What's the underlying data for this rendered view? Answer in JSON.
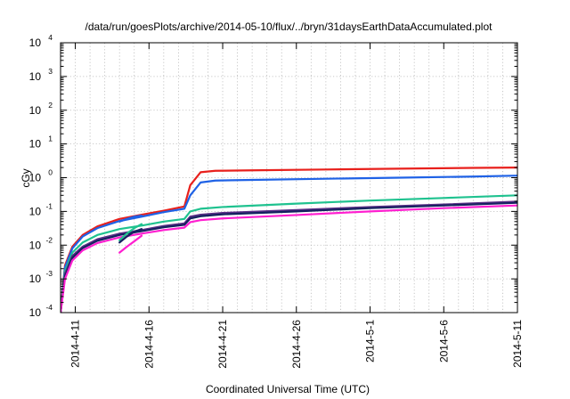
{
  "chart_data": {
    "type": "line",
    "title": "/data/run/goesPlots/archive/2014-05-10/flux/../bryn/31daysEarthDataAccumulated.plot",
    "xlabel": "Coordinated Universal Time (UTC)",
    "ylabel": "cGy",
    "y_scale": "log",
    "ylim": [
      0.0001,
      10000
    ],
    "xlim": [
      "2014-04-10",
      "2014-05-11"
    ],
    "grid": true,
    "legend": "none",
    "x_tick_labels": [
      "2014-4-11",
      "2014-4-16",
      "2014-4-21",
      "2014-4-26",
      "2014-5-1",
      "2014-5-6",
      "2014-5-11"
    ],
    "y_tick_labels": [
      {
        "base": "10",
        "exp": "-4"
      },
      {
        "base": "10",
        "exp": "-3"
      },
      {
        "base": "10",
        "exp": "-2"
      },
      {
        "base": "10",
        "exp": "-1"
      },
      {
        "base": "10",
        "exp": "0"
      },
      {
        "base": "10",
        "exp": "1"
      },
      {
        "base": "10",
        "exp": "2"
      },
      {
        "base": "10",
        "exp": "3"
      },
      {
        "base": "10",
        "exp": "4"
      }
    ],
    "series": [
      {
        "color": "#e8201c",
        "x": [
          "2014-04-10",
          "2014-04-10.3",
          "2014-04-10.8",
          "2014-04-11.5",
          "2014-04-12.5",
          "2014-04-14",
          "2014-04-15.5",
          "2014-04-17",
          "2014-04-18.4",
          "2014-04-18.8",
          "2014-04-19.5",
          "2014-04-20.5",
          "2014-04-23",
          "2014-04-28",
          "2014-05-03",
          "2014-05-08",
          "2014-05-11"
        ],
        "y": [
          0.0001,
          0.0025,
          0.009,
          0.02,
          0.036,
          0.06,
          0.08,
          0.105,
          0.14,
          0.6,
          1.45,
          1.6,
          1.65,
          1.75,
          1.85,
          1.95,
          2.0
        ]
      },
      {
        "color": "#1f62e6",
        "x": [
          "2014-04-10",
          "2014-04-10.3",
          "2014-04-10.8",
          "2014-04-11.5",
          "2014-04-12.5",
          "2014-04-14",
          "2014-04-15.5",
          "2014-04-17",
          "2014-04-18.4",
          "2014-04-18.8",
          "2014-04-19.5",
          "2014-04-20.5",
          "2014-04-23",
          "2014-04-28",
          "2014-05-03",
          "2014-05-08",
          "2014-05-11"
        ],
        "y": [
          0.0001,
          0.0022,
          0.008,
          0.018,
          0.032,
          0.052,
          0.07,
          0.095,
          0.12,
          0.3,
          0.72,
          0.82,
          0.86,
          0.93,
          1.0,
          1.08,
          1.15
        ]
      },
      {
        "color": "#1fc28f",
        "x": [
          "2014-04-10",
          "2014-04-10.3",
          "2014-04-10.8",
          "2014-04-11.5",
          "2014-04-12.5",
          "2014-04-14",
          "2014-04-15.5",
          "2014-04-17",
          "2014-04-18.4",
          "2014-04-18.8",
          "2014-04-19.5",
          "2014-04-21",
          "2014-04-26",
          "2014-05-01",
          "2014-05-06",
          "2014-05-11"
        ],
        "y": [
          0.0001,
          0.0017,
          0.006,
          0.012,
          0.02,
          0.03,
          0.038,
          0.05,
          0.06,
          0.1,
          0.12,
          0.135,
          0.17,
          0.21,
          0.25,
          0.3
        ]
      },
      {
        "color": "#5a2f86",
        "x": [
          "2014-04-10",
          "2014-04-10.3",
          "2014-04-10.8",
          "2014-04-11.5",
          "2014-04-12.5",
          "2014-04-14",
          "2014-04-15.5",
          "2014-04-17",
          "2014-04-18.4",
          "2014-04-18.8",
          "2014-04-19.5",
          "2014-04-21",
          "2014-04-26",
          "2014-05-01",
          "2014-05-06",
          "2014-05-11"
        ],
        "y": [
          0.0001,
          0.0014,
          0.0048,
          0.009,
          0.015,
          0.022,
          0.028,
          0.037,
          0.044,
          0.07,
          0.08,
          0.09,
          0.11,
          0.135,
          0.16,
          0.195
        ]
      },
      {
        "color": "#152060",
        "x": [
          "2014-04-10",
          "2014-04-10.3",
          "2014-04-10.8",
          "2014-04-11.5",
          "2014-04-12.5",
          "2014-04-14",
          "2014-04-15.5",
          "2014-04-17",
          "2014-04-18.4",
          "2014-04-18.8",
          "2014-04-19.5",
          "2014-04-21",
          "2014-04-26",
          "2014-05-01",
          "2014-05-06",
          "2014-05-11"
        ],
        "y": [
          0.0001,
          0.0012,
          0.0042,
          0.0082,
          0.0135,
          0.02,
          0.026,
          0.034,
          0.04,
          0.062,
          0.072,
          0.082,
          0.1,
          0.125,
          0.15,
          0.18
        ]
      },
      {
        "color": "#ff1fd0",
        "x": [
          "2014-04-10",
          "2014-04-10.3",
          "2014-04-10.8",
          "2014-04-11.5",
          "2014-04-12.5",
          "2014-04-14",
          "2014-04-15.5",
          "2014-04-17",
          "2014-04-18.4",
          "2014-04-18.8",
          "2014-04-19.5",
          "2014-04-21",
          "2014-04-26",
          "2014-05-01",
          "2014-05-06",
          "2014-05-11"
        ],
        "y": [
          0.0001,
          0.001,
          0.0035,
          0.007,
          0.0115,
          0.017,
          0.022,
          0.028,
          0.033,
          0.048,
          0.055,
          0.062,
          0.078,
          0.1,
          0.125,
          0.15
        ]
      },
      {
        "color": "#ff1fd0",
        "x": [
          "2014-04-14",
          "2014-04-14.5",
          "2014-04-15",
          "2014-04-15.5"
        ],
        "y": [
          0.006,
          0.009,
          0.013,
          0.019
        ]
      },
      {
        "color": "#1fc28f",
        "x": [
          "2014-04-14",
          "2014-04-14.5",
          "2014-04-15",
          "2014-04-15.5"
        ],
        "y": [
          0.014,
          0.022,
          0.032,
          0.042
        ]
      },
      {
        "color": "#1f62e6",
        "x": [
          "2014-04-14",
          "2014-04-14.5",
          "2014-04-15",
          "2014-04-15.5"
        ],
        "y": [
          0.05,
          0.06,
          0.07,
          0.075
        ]
      },
      {
        "color": "#152060",
        "x": [
          "2014-04-14",
          "2014-04-14.5",
          "2014-04-15",
          "2014-04-15.5"
        ],
        "y": [
          0.012,
          0.018,
          0.025,
          0.03
        ]
      }
    ]
  }
}
